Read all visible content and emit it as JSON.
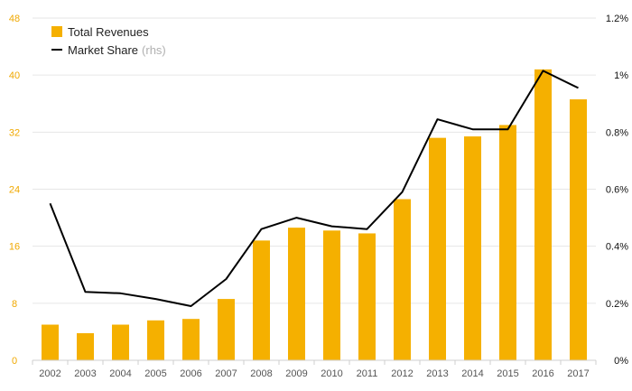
{
  "chart_data": {
    "type": "bar+line",
    "title": "",
    "xlabel": "",
    "categories": [
      "2002",
      "2003",
      "2004",
      "2005",
      "2006",
      "2007",
      "2008",
      "2009",
      "2010",
      "2011",
      "2012",
      "2013",
      "2014",
      "2015",
      "2016",
      "2017"
    ],
    "series": [
      {
        "name": "Total Revenues",
        "type": "bar",
        "axis": "left",
        "color": "#f5b000",
        "values": [
          5.0,
          3.8,
          5.0,
          5.6,
          5.8,
          8.6,
          16.8,
          18.6,
          18.2,
          17.8,
          22.6,
          31.2,
          31.4,
          33.0,
          40.8,
          36.6
        ]
      },
      {
        "name": "Market Share",
        "note": "(rhs)",
        "type": "line",
        "axis": "right",
        "color": "#000000",
        "values": [
          0.55,
          0.24,
          0.235,
          0.215,
          0.19,
          0.285,
          0.46,
          0.5,
          0.47,
          0.46,
          0.59,
          0.845,
          0.81,
          0.81,
          1.015,
          0.955
        ]
      }
    ],
    "y_left": {
      "ylim": [
        0,
        48
      ],
      "ticks": [
        0,
        8,
        16,
        24,
        32,
        40,
        48
      ],
      "tick_labels": [
        "0",
        "8",
        "16",
        "24",
        "32",
        "40",
        "48"
      ],
      "color": "#f0a800"
    },
    "y_right": {
      "ylim": [
        0,
        1.2
      ],
      "ticks": [
        0,
        0.2,
        0.4,
        0.6,
        0.8,
        1.0,
        1.2
      ],
      "tick_labels": [
        "0%",
        "0.2%",
        "0.4%",
        "0.6%",
        "0.8%",
        "1%",
        "1.2%"
      ],
      "color": "#111111"
    },
    "grid": true,
    "legend_position": "top-left"
  }
}
